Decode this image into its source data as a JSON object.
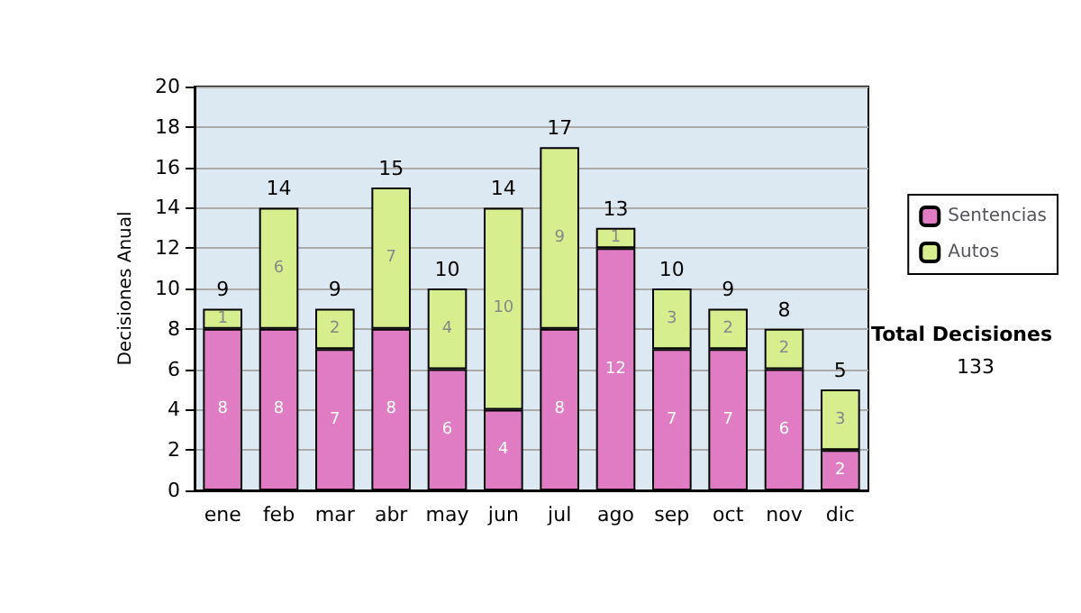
{
  "chart_data": {
    "type": "bar",
    "stacked": true,
    "ylabel": "Decisiones Anual",
    "categories": [
      "ene",
      "feb",
      "mar",
      "abr",
      "may",
      "jun",
      "jul",
      "ago",
      "sep",
      "oct",
      "nov",
      "dic"
    ],
    "series": [
      {
        "name": "Sentencias",
        "color": "#e07cc4",
        "values": [
          8,
          8,
          7,
          8,
          6,
          4,
          8,
          12,
          7,
          7,
          6,
          2
        ]
      },
      {
        "name": "Autos",
        "color": "#d6ee8e",
        "values": [
          1,
          6,
          2,
          7,
          4,
          10,
          9,
          1,
          3,
          2,
          2,
          3
        ]
      }
    ],
    "totals": [
      "9",
      "14",
      "9",
      "15",
      "10",
      "14",
      "17",
      "13",
      "10",
      "9",
      "8",
      "5"
    ],
    "data_labels": true,
    "ylim": [
      0,
      20
    ],
    "yticks": [
      0,
      2,
      4,
      6,
      8,
      10,
      12,
      14,
      16,
      18,
      20
    ],
    "grid": "y",
    "legend": "right",
    "annotations": [
      "Total Decisiones",
      "133"
    ]
  }
}
